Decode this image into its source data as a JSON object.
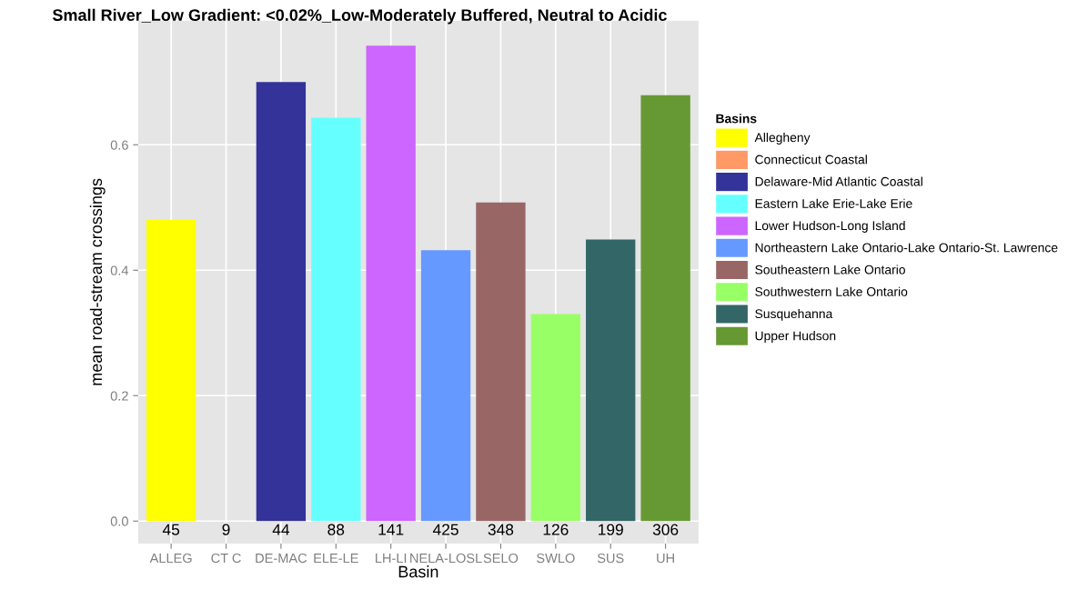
{
  "chart_data": {
    "type": "bar",
    "title": "Small River_Low Gradient: <0.02%_Low-Moderately Buffered, Neutral to Acidic",
    "xlabel": "Basin",
    "ylabel": "mean road-stream crossings",
    "legend_title": "Basins",
    "categories": [
      "ALLEG",
      "CT C",
      "DE-MAC",
      "ELE-LE",
      "LH-LI",
      "NELA-LOSL",
      "SELO",
      "SWLO",
      "SUS",
      "UH"
    ],
    "series": [
      {
        "name": "Allegheny",
        "color": "#ffff00",
        "values": [
          0.48,
          null,
          null,
          null,
          null,
          null,
          null,
          null,
          null,
          null
        ]
      },
      {
        "name": "Connecticut Coastal",
        "color": "#ff9966",
        "values": [
          null,
          null,
          null,
          null,
          null,
          null,
          null,
          null,
          null,
          null
        ]
      },
      {
        "name": "Delaware-Mid Atlantic Coastal",
        "color": "#333399",
        "values": [
          null,
          null,
          0.7,
          null,
          null,
          null,
          null,
          null,
          null,
          null
        ]
      },
      {
        "name": "Eastern Lake Erie-Lake Erie",
        "color": "#66ffff",
        "values": [
          null,
          null,
          null,
          0.643,
          null,
          null,
          null,
          null,
          null,
          null
        ]
      },
      {
        "name": "Lower Hudson-Long Island",
        "color": "#cc66ff",
        "values": [
          null,
          null,
          null,
          null,
          0.758,
          null,
          null,
          null,
          null,
          null
        ]
      },
      {
        "name": "Northeastern Lake Ontario-Lake Ontario-St. Lawrence",
        "color": "#6699ff",
        "values": [
          null,
          null,
          null,
          null,
          null,
          0.432,
          null,
          null,
          null,
          null
        ]
      },
      {
        "name": "Southeastern Lake Ontario",
        "color": "#996666",
        "values": [
          null,
          null,
          null,
          null,
          null,
          null,
          0.508,
          null,
          null,
          null
        ]
      },
      {
        "name": "Southwestern Lake Ontario",
        "color": "#99ff66",
        "values": [
          null,
          null,
          null,
          null,
          null,
          null,
          null,
          0.33,
          null,
          null
        ]
      },
      {
        "name": "Susquehanna",
        "color": "#336666",
        "values": [
          null,
          null,
          null,
          null,
          null,
          null,
          null,
          null,
          0.449,
          null
        ]
      },
      {
        "name": "Upper Hudson",
        "color": "#669933",
        "values": [
          null,
          null,
          null,
          null,
          null,
          null,
          null,
          null,
          null,
          0.679
        ]
      }
    ],
    "annotations": [
      "45",
      "9",
      "44",
      "88",
      "141",
      "425",
      "348",
      "126",
      "199",
      "306"
    ],
    "ylim": [
      -0.036,
      0.798
    ],
    "yticks": [
      {
        "value": 0,
        "label": "0.0"
      },
      {
        "value": 0.2,
        "label": "0.2"
      },
      {
        "value": 0.4,
        "label": "0.4"
      },
      {
        "value": 0.6,
        "label": "0.6"
      }
    ],
    "grid": true,
    "legend": "right"
  }
}
